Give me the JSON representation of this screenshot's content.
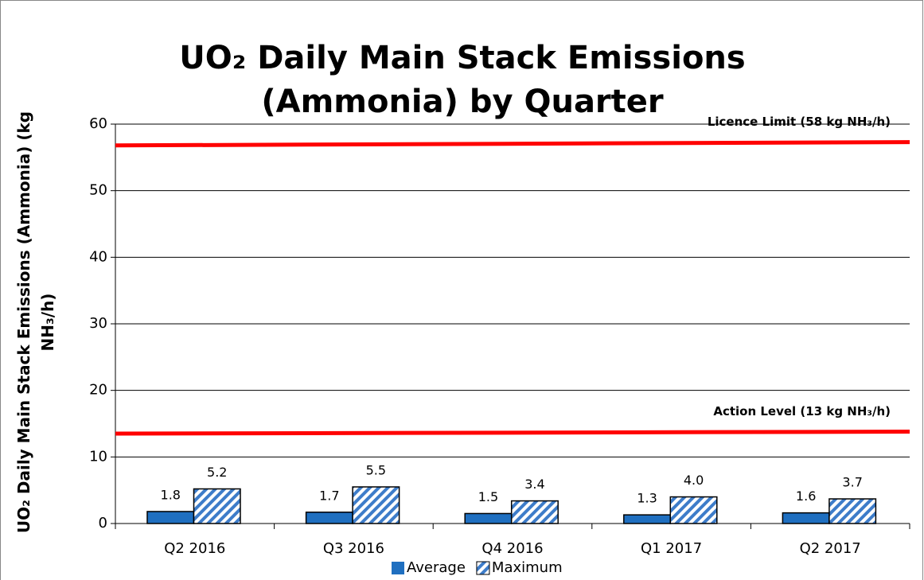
{
  "chart_data": {
    "type": "bar",
    "title": "UO₂ Daily Main Stack Emissions (Ammonia) by Quarter",
    "y_label": "UO₂ Daily Main Stack Emissions (Ammonia) (kg NH₃/h)",
    "categories": [
      "Q2 2016",
      "Q3 2016",
      "Q4 2016",
      "Q1 2017",
      "Q2 2017"
    ],
    "series": [
      {
        "name": "Average",
        "color": "#1f6fc0",
        "hatch": false,
        "values": [
          1.8,
          1.7,
          1.5,
          1.3,
          1.6
        ],
        "value_labels": [
          "1.8",
          "1.7",
          "1.5",
          "1.3",
          "1.6"
        ]
      },
      {
        "name": "Maximum",
        "color": "#3d7cc9",
        "hatch": true,
        "values": [
          5.2,
          5.5,
          3.4,
          4.0,
          3.7
        ],
        "value_labels": [
          "5.2",
          "5.5",
          "3.4",
          "4.0",
          "3.7"
        ]
      }
    ],
    "reference_lines": [
      {
        "label": "Licence Limit (58 kg NH₃/h)",
        "color": "#ff0000",
        "values": [
          56.8,
          57.3
        ]
      },
      {
        "label": "Action Level (13 kg NH₃/h)",
        "color": "#ff0000",
        "values": [
          13.5,
          13.8
        ]
      }
    ],
    "ylim": [
      0,
      60
    ],
    "yticks": [
      0,
      10,
      20,
      30,
      40,
      50,
      60
    ],
    "grid": true,
    "legend": "bottom"
  }
}
